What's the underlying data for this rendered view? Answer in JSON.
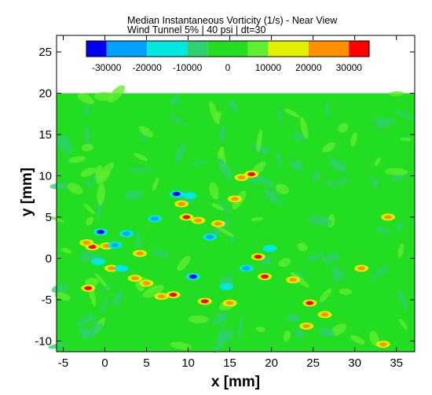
{
  "chart_data": {
    "type": "heatmap",
    "title": "Median Instantaneous Vorticity (1/s) - Near View",
    "subtitle": "Wind Tunnel 5% | 40 psi | dt=30",
    "xlabel": "x [mm]",
    "ylabel": "y [mm]",
    "xlim": [
      -5.8,
      37.2
    ],
    "ylim": [
      -11.3,
      27
    ],
    "field_ylim": [
      -11.3,
      20
    ],
    "xticks": [
      -5,
      0,
      5,
      10,
      15,
      20,
      25,
      30,
      35
    ],
    "yticks": [
      -10,
      -5,
      0,
      5,
      10,
      15,
      20,
      25
    ],
    "xtick_labels": [
      "-5",
      "0",
      "5",
      "10",
      "15",
      "20",
      "25",
      "30",
      "35"
    ],
    "ytick_labels": [
      "-10",
      "-5",
      "0",
      "5",
      "10",
      "15",
      "20",
      "25"
    ],
    "colorbar": {
      "min": -35000,
      "max": 35000,
      "boundaries": [
        -35000,
        -30000,
        -20000,
        -10000,
        -5000,
        5000,
        10000,
        20000,
        30000,
        35000
      ],
      "colors": [
        "#0000ee",
        "#00a0ff",
        "#00e8e0",
        "#30d070",
        "#22dd22",
        "#60ee30",
        "#e0f000",
        "#ff9000",
        "#ff0000"
      ],
      "tick_values": [
        -30000,
        -20000,
        -10000,
        0,
        10000,
        20000,
        30000
      ],
      "tick_labels": [
        "-30000",
        "-20000",
        "-10000",
        "0",
        "10000",
        "20000",
        "30000"
      ]
    },
    "background_value": 0,
    "features": [
      {
        "x": -0.5,
        "y": 3.2,
        "value": -32000
      },
      {
        "x": -1.5,
        "y": 1.4,
        "value": 33000
      },
      {
        "x": -2.2,
        "y": 1.9,
        "value": 28000
      },
      {
        "x": 0.2,
        "y": 1.5,
        "value": 26000
      },
      {
        "x": 1.2,
        "y": 1.6,
        "value": -24000
      },
      {
        "x": -0.8,
        "y": -0.4,
        "value": -18000
      },
      {
        "x": -2.0,
        "y": -3.6,
        "value": 31000
      },
      {
        "x": 0.8,
        "y": -1.2,
        "value": 24000
      },
      {
        "x": 2.6,
        "y": 3.0,
        "value": -26000
      },
      {
        "x": 2.0,
        "y": -1.2,
        "value": -15000
      },
      {
        "x": 3.6,
        "y": -2.4,
        "value": 27000
      },
      {
        "x": 4.2,
        "y": 0.6,
        "value": 24000
      },
      {
        "x": 5.0,
        "y": -3.0,
        "value": 22000
      },
      {
        "x": 6.0,
        "y": 4.8,
        "value": -30000
      },
      {
        "x": 6.8,
        "y": -4.6,
        "value": 28000
      },
      {
        "x": 8.2,
        "y": -4.4,
        "value": 30000
      },
      {
        "x": 8.6,
        "y": 7.8,
        "value": -32000
      },
      {
        "x": 9.2,
        "y": 6.6,
        "value": 25000
      },
      {
        "x": 10.2,
        "y": 7.6,
        "value": -20000
      },
      {
        "x": 9.8,
        "y": 5.0,
        "value": 30000
      },
      {
        "x": 10.6,
        "y": -2.2,
        "value": -31000
      },
      {
        "x": 11.2,
        "y": 4.6,
        "value": 27000
      },
      {
        "x": 12.0,
        "y": -5.2,
        "value": 33000
      },
      {
        "x": 12.6,
        "y": 2.6,
        "value": -22000
      },
      {
        "x": 13.6,
        "y": 4.2,
        "value": 24000
      },
      {
        "x": 14.6,
        "y": -3.4,
        "value": -20000
      },
      {
        "x": 15.6,
        "y": 7.2,
        "value": 22000
      },
      {
        "x": 16.4,
        "y": 9.8,
        "value": 21000
      },
      {
        "x": 17.6,
        "y": 10.2,
        "value": 30000
      },
      {
        "x": 18.4,
        "y": 0.2,
        "value": 31000
      },
      {
        "x": 19.2,
        "y": -2.2,
        "value": 33000
      },
      {
        "x": 17.0,
        "y": -1.2,
        "value": -22000
      },
      {
        "x": 15.0,
        "y": -5.4,
        "value": 24000
      },
      {
        "x": 19.8,
        "y": 1.2,
        "value": -18000
      },
      {
        "x": 22.6,
        "y": -2.6,
        "value": 22000
      },
      {
        "x": 24.6,
        "y": -5.4,
        "value": 30000
      },
      {
        "x": 26.4,
        "y": -6.8,
        "value": 25000
      },
      {
        "x": 24.2,
        "y": -8.2,
        "value": 27000
      },
      {
        "x": 30.8,
        "y": -1.2,
        "value": 22000
      },
      {
        "x": 33.4,
        "y": -10.4,
        "value": 24000
      },
      {
        "x": 34.0,
        "y": 5.0,
        "value": 20000
      }
    ]
  }
}
